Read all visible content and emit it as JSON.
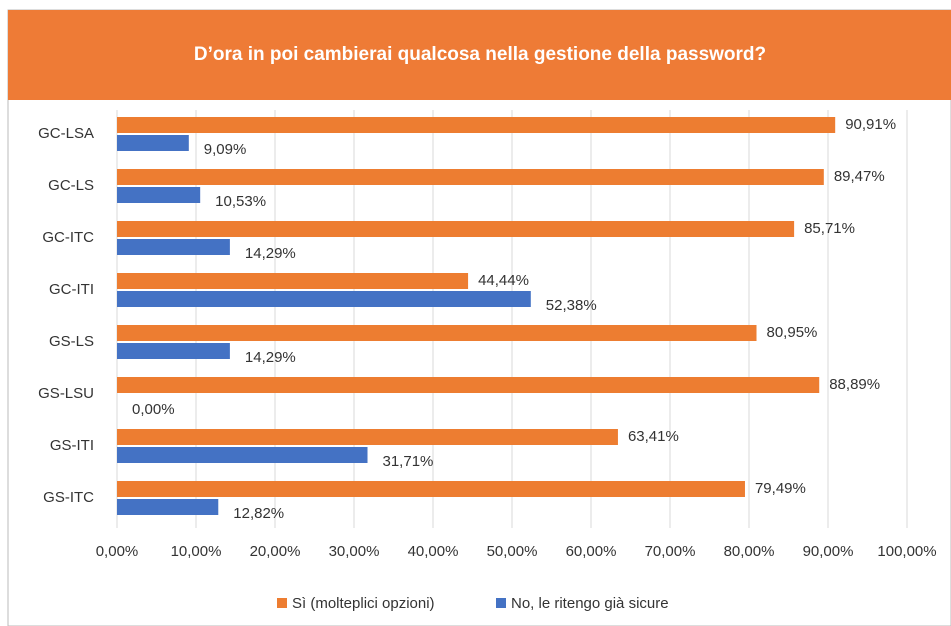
{
  "chart_data": {
    "type": "bar",
    "orientation": "horizontal",
    "title": "D’ora in poi cambierai qualcosa nella gestione della password?",
    "categories": [
      "GC-LSA",
      "GC-LS",
      "GC-ITC",
      "GC-ITI",
      "GS-LS",
      "GS-LSU",
      "GS-ITI",
      "GS-ITC"
    ],
    "series": [
      {
        "name": "Sì (molteplici opzioni)",
        "color": "#ed7d31",
        "values": [
          90.91,
          89.47,
          85.71,
          44.44,
          80.95,
          88.89,
          63.41,
          79.49
        ],
        "value_labels": [
          "90,91%",
          "89,47%",
          "85,71%",
          "44,44%",
          "80,95%",
          "88,89%",
          "63,41%",
          "79,49%"
        ]
      },
      {
        "name": "No, le ritengo già sicure",
        "color": "#4472c4",
        "values": [
          9.09,
          10.53,
          14.29,
          52.38,
          14.29,
          0,
          31.71,
          12.82
        ],
        "value_labels": [
          "9,09%",
          "10,53%",
          "14,29%",
          "52,38%",
          "14,29%",
          "0,00%",
          "31,71%",
          "12,82%"
        ]
      }
    ],
    "xlim": [
      0,
      100
    ],
    "xticks": [
      {
        "value": 0,
        "label": "0,00%"
      },
      {
        "value": 10,
        "label": "10,00%"
      },
      {
        "value": 20,
        "label": "20,00%"
      },
      {
        "value": 30,
        "label": "30,00%"
      },
      {
        "value": 40,
        "label": "40,00%"
      },
      {
        "value": 50,
        "label": "50,00%"
      },
      {
        "value": 60,
        "label": "60,00%"
      },
      {
        "value": 70,
        "label": "70,00%"
      },
      {
        "value": 80,
        "label": "80,00%"
      },
      {
        "value": 90,
        "label": "90,00%"
      },
      {
        "value": 100,
        "label": "100,00%"
      }
    ],
    "grid": true,
    "legend": "bottom"
  }
}
